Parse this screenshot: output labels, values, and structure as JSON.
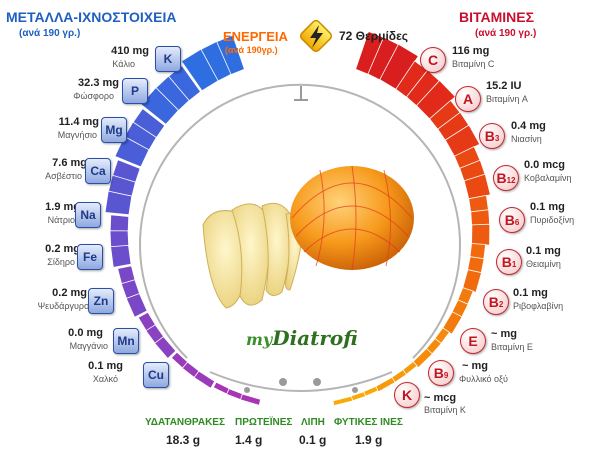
{
  "minerals": {
    "title": "ΜΕΤΑΛΛΑ-ΙΧΝΟΣΤΟΙΧΕΙΑ",
    "subtitle": "(ανά 190 γρ.)",
    "items": [
      {
        "symbol": "K",
        "value": "410 mg",
        "name": "Κάλιο"
      },
      {
        "symbol": "P",
        "value": "32.3 mg",
        "name": "Φώσφορο"
      },
      {
        "symbol": "Mg",
        "value": "11.4 mg",
        "name": "Μαγνήσιο"
      },
      {
        "symbol": "Ca",
        "value": "7.6 mg",
        "name": "Ασβέστιο"
      },
      {
        "symbol": "Na",
        "value": "1.9 mg",
        "name": "Νάτριο"
      },
      {
        "symbol": "Fe",
        "value": "0.2 mg",
        "name": "Σίδηρο"
      },
      {
        "symbol": "Zn",
        "value": "0.2 mg",
        "name": "Ψευδάργυρο"
      },
      {
        "symbol": "Mn",
        "value": "0.0 mg",
        "name": "Μαγγάνιο"
      },
      {
        "symbol": "Cu",
        "value": "0.1 mg",
        "name": "Χαλκό"
      }
    ]
  },
  "vitamins": {
    "title": "ΒΙΤΑΜΙΝΕΣ",
    "subtitle": "(ανά 190 γρ.)",
    "items": [
      {
        "letter": "C",
        "sub": "",
        "value": "116 mg",
        "name": "Βιταμίνη C"
      },
      {
        "letter": "A",
        "sub": "",
        "value": "15.2 IU",
        "name": "Βιταμίνη A"
      },
      {
        "letter": "B",
        "sub": "3",
        "value": "0.4 mg",
        "name": "Νιασίνη"
      },
      {
        "letter": "B",
        "sub": "12",
        "value": "0.0 mcg",
        "name": "Κοβαλαμίνη"
      },
      {
        "letter": "B",
        "sub": "6",
        "value": "0.1 mg",
        "name": "Πυριδοξίνη"
      },
      {
        "letter": "B",
        "sub": "1",
        "value": "0.1 mg",
        "name": "Θειαμίνη"
      },
      {
        "letter": "B",
        "sub": "2",
        "value": "0.1 mg",
        "name": "Ριβοφλαβίνη"
      },
      {
        "letter": "E",
        "sub": "",
        "value": "~ mg",
        "name": "Βιταμίνη E"
      },
      {
        "letter": "B",
        "sub": "9",
        "value": "~ mg",
        "name": "Φυλλικό οξύ"
      },
      {
        "letter": "K",
        "sub": "",
        "value": "~ mcg",
        "name": "Βιταμίνη K"
      }
    ]
  },
  "energy": {
    "title": "ΕΝΕΡΓΕΙΑ",
    "subtitle": "(ανά 190γρ.)",
    "value": "72 Θερμίδες"
  },
  "nutrients": [
    {
      "label": "ΥΔΑΤΑΝΘΡΑΚΕΣ",
      "value": "18.3 g"
    },
    {
      "label": "ΠΡΩΤΕΪΝΕΣ",
      "value": "1.4 g"
    },
    {
      "label": "ΛΙΠΗ",
      "value": "0.1 g"
    },
    {
      "label": "ΦΥΤΙΚΕΣ ΙΝΕΣ",
      "value": "1.9 g"
    }
  ],
  "logo": {
    "prefix": "my",
    "main": "Diatrofi"
  },
  "colors": {
    "mineral_accent": "#1f5fbf",
    "vitamin_accent": "#c8102e",
    "energy_accent": "#ff6a00",
    "nutrient_label": "#2e8b22"
  },
  "icons": {
    "energy": "lightning-bolt-icon"
  }
}
